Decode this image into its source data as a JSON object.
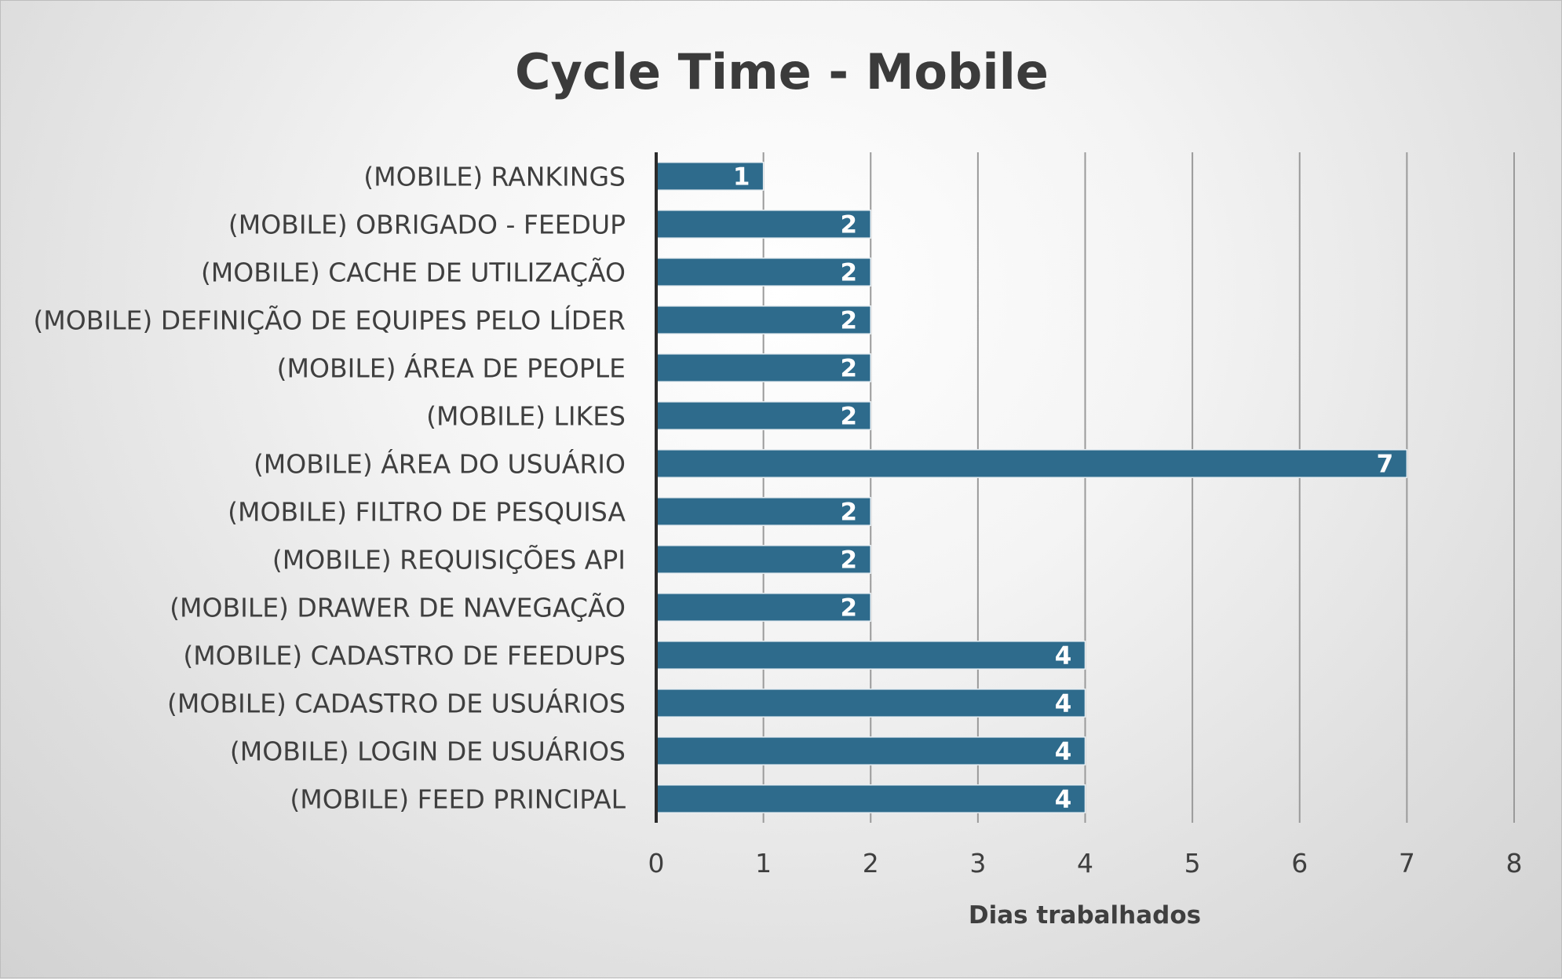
{
  "chart_data": {
    "type": "bar",
    "orientation": "horizontal",
    "title": "Cycle Time - Mobile",
    "xlabel": "Dias trabalhados",
    "ylabel": "",
    "categories": [
      "(MOBILE) RANKINGS",
      "(MOBILE) OBRIGADO - FEEDUP",
      "(MOBILE) CACHE DE UTILIZAÇÃO",
      "(MOBILE) DEFINIÇÃO DE EQUIPES PELO LÍDER",
      "(MOBILE) ÁREA DE PEOPLE",
      "(MOBILE) LIKES",
      "(MOBILE) ÁREA DO USUÁRIO",
      "(MOBILE) FILTRO DE PESQUISA",
      "(MOBILE) REQUISIÇÕES API",
      "(MOBILE) DRAWER DE NAVEGAÇÃO",
      "(MOBILE) CADASTRO DE FEEDUPS",
      "(MOBILE) CADASTRO DE USUÁRIOS",
      "(MOBILE) LOGIN DE USUÁRIOS",
      "(MOBILE) FEED PRINCIPAL"
    ],
    "values": [
      1,
      2,
      2,
      2,
      2,
      2,
      7,
      2,
      2,
      2,
      4,
      4,
      4,
      4
    ],
    "xlim": [
      0,
      8
    ],
    "xticks": [
      "0",
      "1",
      "2",
      "3",
      "4",
      "5",
      "6",
      "7",
      "8"
    ],
    "grid": "vertical",
    "legend": "none",
    "data_labels": true,
    "colors": {
      "bar": "#2e6b8c",
      "bar_edge": "#e8eef2",
      "gridline": "#9a9a9a",
      "axis": "#2b2b2b",
      "text": "#3f3f3f",
      "data_label": "#ffffff"
    }
  }
}
